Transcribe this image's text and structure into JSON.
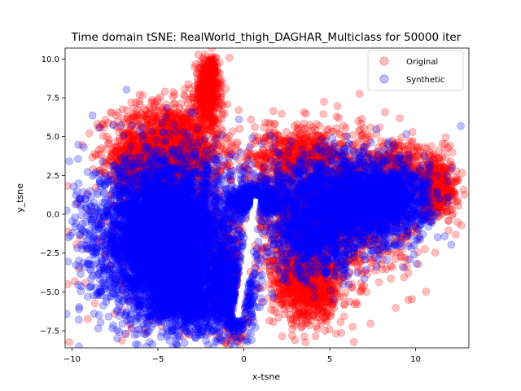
{
  "chart_data": {
    "type": "scatter",
    "title": "Time domain tSNE: RealWorld_thigh_DAGHAR_Multiclass for 50000 iter",
    "xlabel": "x-tsne",
    "ylabel": "y_tsne",
    "xlim": [
      -10.4,
      13.1
    ],
    "ylim": [
      -8.6,
      10.7
    ],
    "xticks": [
      -10,
      -5,
      0,
      5,
      10
    ],
    "xtick_labels": [
      "−10",
      "−5",
      "0",
      "5",
      "10"
    ],
    "yticks": [
      -7.5,
      -5.0,
      -2.5,
      0.0,
      2.5,
      5.0,
      7.5,
      10.0
    ],
    "ytick_labels": [
      "−7.5",
      "−5.0",
      "−2.5",
      "0.0",
      "2.5",
      "5.0",
      "7.5",
      "10.0"
    ],
    "grid": false,
    "legend": {
      "placement": "top-right"
    },
    "series": [
      {
        "name": "Original",
        "color": "#ff0000",
        "alpha": 0.25,
        "regions": [
          {
            "desc": "upper-left lobe",
            "cx": -4.4,
            "cy": 4.1,
            "sx": 1.6,
            "sy": 1.5,
            "n": 1700
          },
          {
            "desc": "upper-left lobe edge",
            "cx": -5.8,
            "cy": 2.9,
            "sx": 0.8,
            "sy": 0.8,
            "n": 400
          },
          {
            "desc": "tail",
            "cx": -2.1,
            "cy": 7.9,
            "sx": 0.35,
            "sy": 1.0,
            "n": 500
          },
          {
            "desc": "tail tip",
            "cx": -1.9,
            "cy": 9.4,
            "sx": 0.15,
            "sy": 0.3,
            "n": 150
          },
          {
            "desc": "left blob fringe",
            "cx": -4.5,
            "cy": -1.5,
            "sx": 2.3,
            "sy": 2.9,
            "n": 500
          },
          {
            "desc": "inner band",
            "cx": -0.8,
            "cy": -4.5,
            "sx": 0.5,
            "sy": 2.0,
            "n": 400
          },
          {
            "desc": "right cluster",
            "cx": 5.0,
            "cy": 0.5,
            "sx": 2.4,
            "sy": 2.2,
            "n": 2000
          },
          {
            "desc": "right cluster bottom",
            "cx": 3.7,
            "cy": -4.5,
            "sx": 1.0,
            "sy": 1.3,
            "n": 900
          },
          {
            "desc": "right cluster top",
            "cx": 3.3,
            "cy": 3.8,
            "sx": 1.3,
            "sy": 0.9,
            "n": 500
          },
          {
            "desc": "far right",
            "cx": 11.2,
            "cy": 1.8,
            "sx": 0.6,
            "sy": 1.0,
            "n": 500
          },
          {
            "desc": "right upper edge",
            "cx": 9.0,
            "cy": 3.2,
            "sx": 0.8,
            "sy": 0.8,
            "n": 200
          }
        ]
      },
      {
        "name": "Synthetic",
        "color": "#0000ff",
        "alpha": 0.25,
        "regions": [
          {
            "desc": "left blob",
            "cx": -4.5,
            "cy": -1.6,
            "sx": 2.0,
            "sy": 2.5,
            "n": 5500
          },
          {
            "desc": "left blob lower",
            "cx": -3.0,
            "cy": -5.5,
            "sx": 1.3,
            "sy": 1.0,
            "n": 800
          },
          {
            "desc": "inner lower",
            "cx": -0.6,
            "cy": -5.2,
            "sx": 0.6,
            "sy": 1.4,
            "n": 700
          },
          {
            "desc": "arm",
            "cx": 0.6,
            "cy": 1.0,
            "sx": 0.7,
            "sy": 0.5,
            "n": 500
          },
          {
            "desc": "right cluster",
            "cx": 5.4,
            "cy": 0.9,
            "sx": 2.3,
            "sy": 1.5,
            "n": 2000
          },
          {
            "desc": "right cluster mid",
            "cx": 4.2,
            "cy": -1.8,
            "sx": 1.2,
            "sy": 1.3,
            "n": 600
          },
          {
            "desc": "right far",
            "cx": 8.5,
            "cy": 0.8,
            "sx": 1.1,
            "sy": 1.2,
            "n": 800
          }
        ]
      }
    ]
  }
}
